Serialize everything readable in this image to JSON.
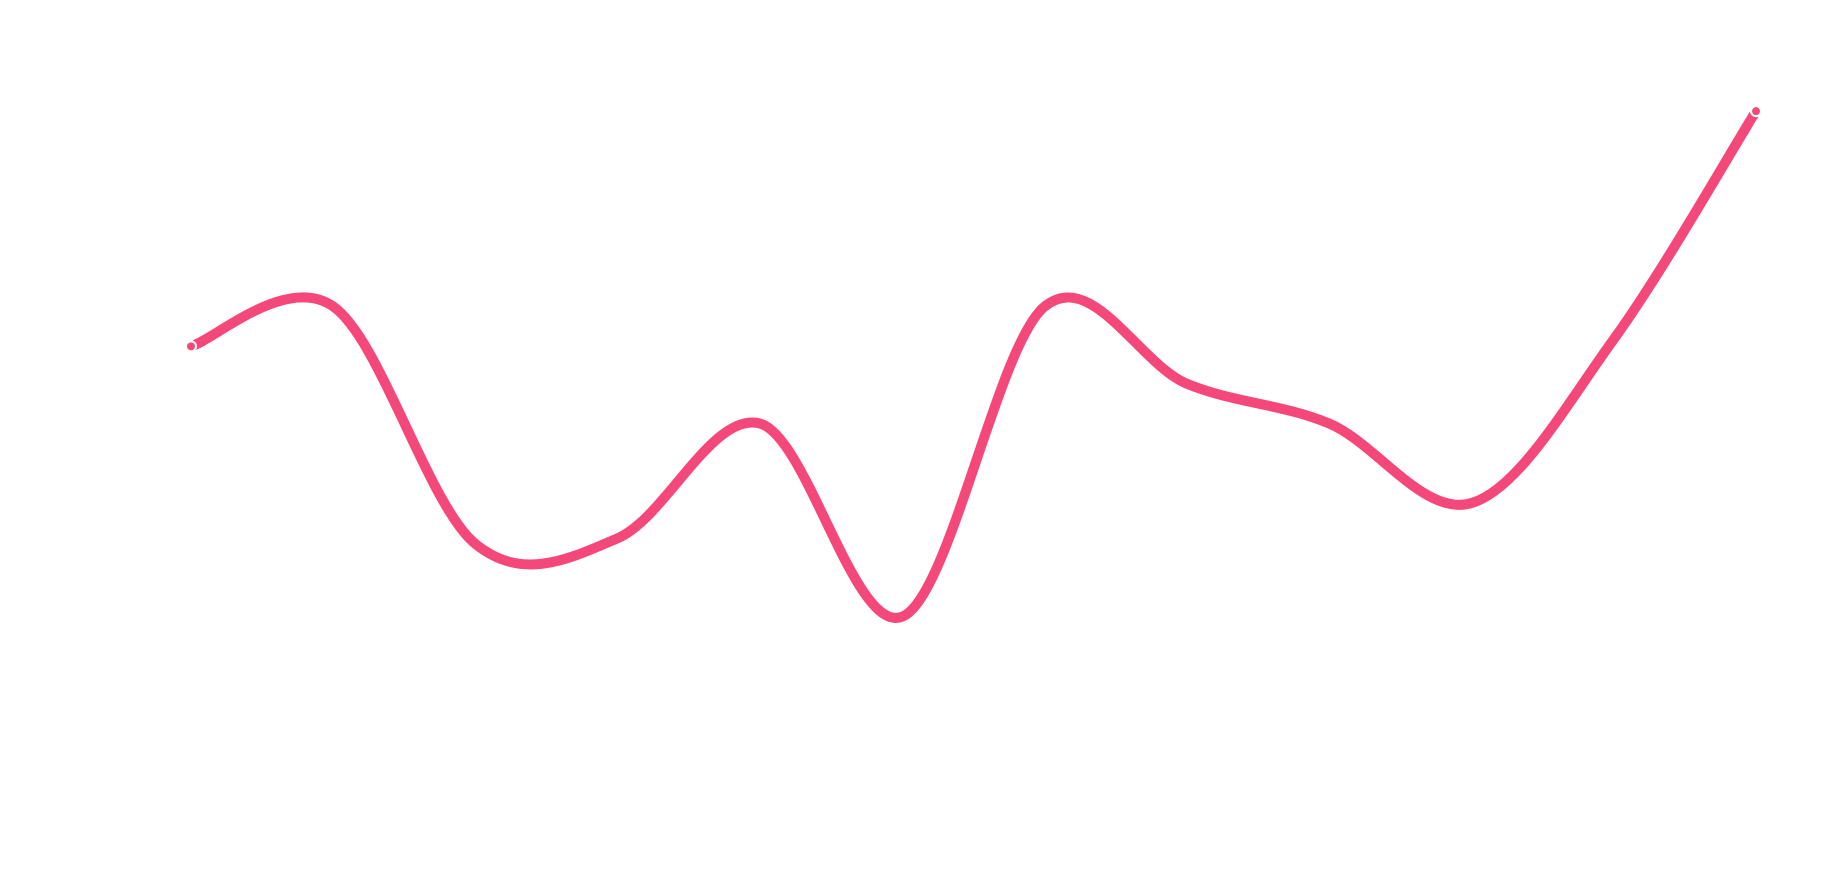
{
  "chart_data": {
    "type": "line",
    "values": [
      60.8,
      67.6,
      27,
      28,
      47.6,
      14.6,
      67.6,
      54.4,
      47.6,
      34,
      62,
      101
    ],
    "color": "#f5487a",
    "ylim": [
      -20,
      120
    ]
  }
}
